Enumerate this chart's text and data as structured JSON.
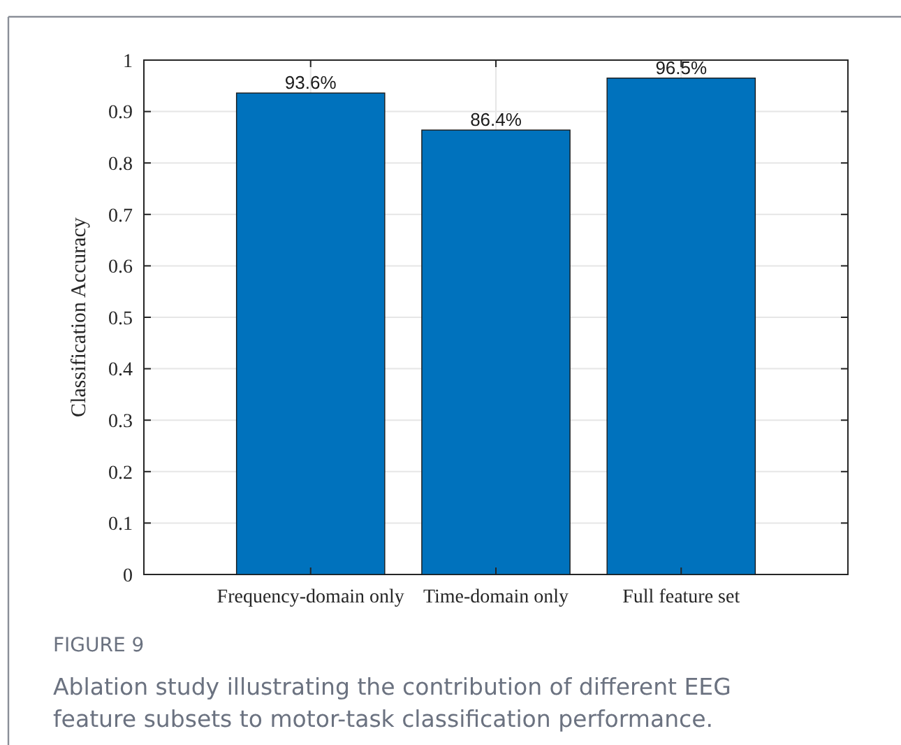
{
  "chart_data": {
    "type": "bar",
    "ylabel": "Classification Accuracy",
    "categories": [
      "Frequency-domain only",
      "Time-domain only",
      "Full feature set"
    ],
    "values": [
      0.936,
      0.864,
      0.965
    ],
    "value_labels": [
      "93.6%",
      "86.4%",
      "96.5%"
    ],
    "color": "#0072bd",
    "ylim": [
      0,
      1
    ],
    "yticks": [
      0,
      0.1,
      0.2,
      0.3,
      0.4,
      0.5,
      0.6,
      0.7,
      0.8,
      0.9,
      1
    ],
    "grid": true,
    "annotations": [
      "FIGURE 9",
      "Ablation study illustrating the contribution of different EEG feature subsets to motor-task classification performance."
    ]
  }
}
